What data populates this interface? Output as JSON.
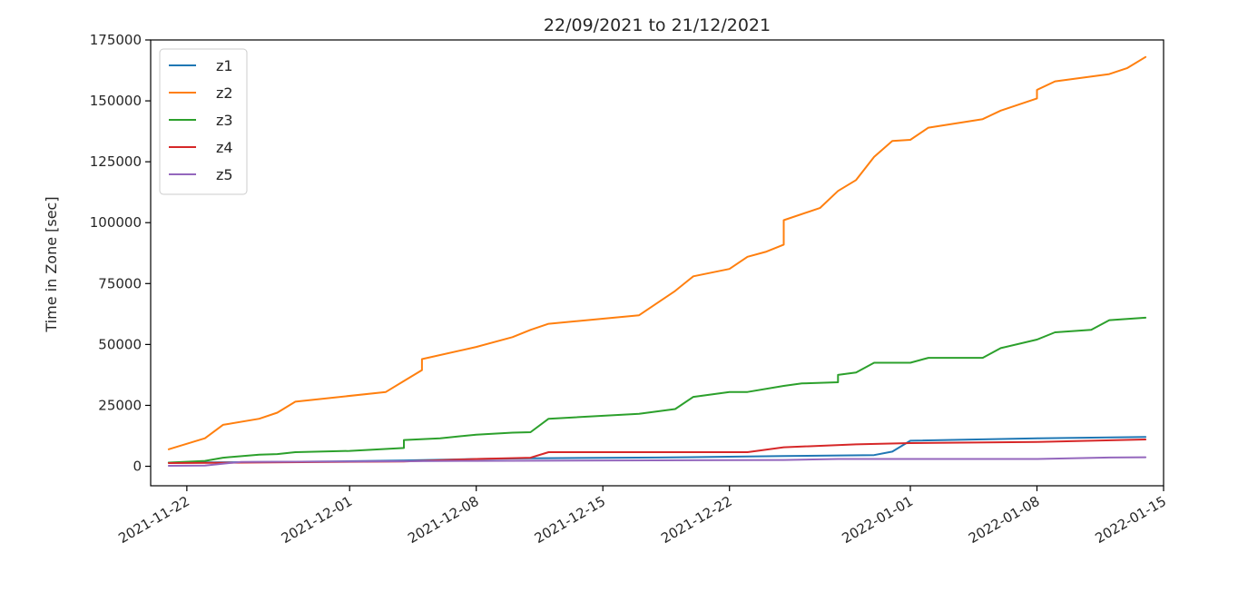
{
  "chart_data": {
    "type": "line",
    "title": "22/09/2021 to 21/12/2021",
    "xlabel": "",
    "ylabel": "Time in Zone [sec]",
    "ylim": [
      -8000,
      175000
    ],
    "xlim": [
      "2021-11-20",
      "2022-01-15"
    ],
    "yticks": [
      0,
      25000,
      50000,
      75000,
      100000,
      125000,
      150000,
      175000
    ],
    "xticks": [
      "2021-11-22",
      "2021-12-01",
      "2021-12-08",
      "2021-12-15",
      "2021-12-22",
      "2022-01-01",
      "2022-01-08",
      "2022-01-15"
    ],
    "grid": false,
    "legend_position": "top-left",
    "series": [
      {
        "name": "z1",
        "color": "#1f77b4",
        "points": [
          [
            "2021-11-21",
            1500
          ],
          [
            "2021-11-25",
            1700
          ],
          [
            "2021-11-30",
            2000
          ],
          [
            "2021-12-04",
            2400
          ],
          [
            "2021-12-08",
            3000
          ],
          [
            "2021-12-11",
            3300
          ],
          [
            "2021-12-18",
            3600
          ],
          [
            "2021-12-25",
            4200
          ],
          [
            "2021-12-30",
            4600
          ],
          [
            "2021-12-31",
            6000
          ],
          [
            "2022-01-01",
            10500
          ],
          [
            "2022-01-08",
            11500
          ],
          [
            "2022-01-14",
            12000
          ]
        ]
      },
      {
        "name": "z2",
        "color": "#ff7f0e",
        "points": [
          [
            "2021-11-21",
            7000
          ],
          [
            "2021-11-23",
            11500
          ],
          [
            "2021-11-24",
            17000
          ],
          [
            "2021-11-26",
            19500
          ],
          [
            "2021-11-27",
            22000
          ],
          [
            "2021-11-28",
            26500
          ],
          [
            "2021-12-03",
            30500
          ],
          [
            "2021-12-04",
            35000
          ],
          [
            "2021-12-05",
            39500
          ],
          [
            "2021-12-05",
            44000
          ],
          [
            "2021-12-08",
            49000
          ],
          [
            "2021-12-10",
            53000
          ],
          [
            "2021-12-11",
            56000
          ],
          [
            "2021-12-12",
            58500
          ],
          [
            "2021-12-17",
            62000
          ],
          [
            "2021-12-18",
            67000
          ],
          [
            "2021-12-19",
            72000
          ],
          [
            "2021-12-20",
            78000
          ],
          [
            "2021-12-22",
            81000
          ],
          [
            "2021-12-23",
            86000
          ],
          [
            "2021-12-24",
            88000
          ],
          [
            "2021-12-25",
            91000
          ],
          [
            "2021-12-25",
            101000
          ],
          [
            "2021-12-27",
            106000
          ],
          [
            "2021-12-28",
            113000
          ],
          [
            "2021-12-29",
            117500
          ],
          [
            "2021-12-30",
            127000
          ],
          [
            "2021-12-31",
            133500
          ],
          [
            "2022-01-01",
            134000
          ],
          [
            "2022-01-02",
            139000
          ],
          [
            "2022-01-05",
            142500
          ],
          [
            "2022-01-06",
            146000
          ],
          [
            "2022-01-08",
            151000
          ],
          [
            "2022-01-08",
            154500
          ],
          [
            "2022-01-09",
            158000
          ],
          [
            "2022-01-12",
            161000
          ],
          [
            "2022-01-13",
            163500
          ],
          [
            "2022-01-14",
            168000
          ]
        ]
      },
      {
        "name": "z3",
        "color": "#2ca02c",
        "points": [
          [
            "2021-11-21",
            1500
          ],
          [
            "2021-11-23",
            2200
          ],
          [
            "2021-11-24",
            3500
          ],
          [
            "2021-11-26",
            4800
          ],
          [
            "2021-11-27",
            5000
          ],
          [
            "2021-11-28",
            5800
          ],
          [
            "2021-12-01",
            6300
          ],
          [
            "2021-12-04",
            7500
          ],
          [
            "2021-12-04",
            10800
          ],
          [
            "2021-12-06",
            11500
          ],
          [
            "2021-12-08",
            13000
          ],
          [
            "2021-12-10",
            13800
          ],
          [
            "2021-12-11",
            14000
          ],
          [
            "2021-12-12",
            19500
          ],
          [
            "2021-12-17",
            21500
          ],
          [
            "2021-12-19",
            23500
          ],
          [
            "2021-12-20",
            28500
          ],
          [
            "2021-12-22",
            30500
          ],
          [
            "2021-12-23",
            30500
          ],
          [
            "2021-12-25",
            33000
          ],
          [
            "2021-12-26",
            34000
          ],
          [
            "2021-12-28",
            34500
          ],
          [
            "2021-12-28",
            37500
          ],
          [
            "2021-12-29",
            38500
          ],
          [
            "2021-12-30",
            42500
          ],
          [
            "2022-01-01",
            42500
          ],
          [
            "2022-01-02",
            44500
          ],
          [
            "2022-01-05",
            44500
          ],
          [
            "2022-01-06",
            48500
          ],
          [
            "2022-01-08",
            52000
          ],
          [
            "2022-01-09",
            55000
          ],
          [
            "2022-01-11",
            56000
          ],
          [
            "2022-01-12",
            60000
          ],
          [
            "2022-01-14",
            61000
          ]
        ]
      },
      {
        "name": "z4",
        "color": "#d62728",
        "points": [
          [
            "2021-11-21",
            1300
          ],
          [
            "2021-11-25",
            1500
          ],
          [
            "2021-12-04",
            2000
          ],
          [
            "2021-12-08",
            3000
          ],
          [
            "2021-12-11",
            3500
          ],
          [
            "2021-12-12",
            5800
          ],
          [
            "2021-12-23",
            5800
          ],
          [
            "2021-12-25",
            7800
          ],
          [
            "2021-12-29",
            9000
          ],
          [
            "2022-01-01",
            9500
          ],
          [
            "2022-01-08",
            10000
          ],
          [
            "2022-01-14",
            11000
          ]
        ]
      },
      {
        "name": "z5",
        "color": "#9467bd",
        "points": [
          [
            "2021-11-21",
            200
          ],
          [
            "2021-11-23",
            300
          ],
          [
            "2021-11-25",
            1800
          ],
          [
            "2021-12-01",
            2000
          ],
          [
            "2021-12-08",
            2200
          ],
          [
            "2021-12-25",
            2600
          ],
          [
            "2021-12-28",
            3000
          ],
          [
            "2022-01-08",
            3000
          ],
          [
            "2022-01-12",
            3600
          ],
          [
            "2022-01-14",
            3700
          ]
        ]
      }
    ]
  }
}
